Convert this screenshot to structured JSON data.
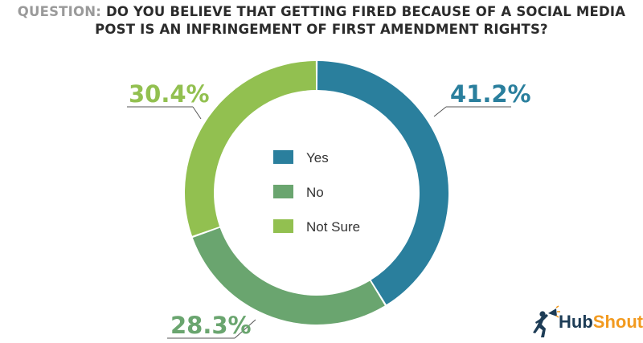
{
  "title": {
    "prefix": "QUESTION:",
    "line1": "DO YOU BELIEVE THAT GETTING FIRED BECAUSE OF A SOCIAL MEDIA",
    "line2": "POST IS AN INFRINGEMENT OF FIRST AMENDMENT RIGHTS?"
  },
  "logo": {
    "text_a": "Hub",
    "text_b": "Shout"
  },
  "chart_data": {
    "type": "pie",
    "style": "donut",
    "title": "QUESTION: DO YOU BELIEVE THAT GETTING FIRED BECAUSE OF A SOCIAL MEDIA POST IS AN INFRINGEMENT OF FIRST AMENDMENT RIGHTS?",
    "legend_position": "center",
    "slices": [
      {
        "label": "Yes",
        "value": 41.2,
        "display": "41.2%",
        "color": "#2a7f9d"
      },
      {
        "label": "No",
        "value": 28.3,
        "display": "28.3%",
        "color": "#6aa56f"
      },
      {
        "label": "Not Sure",
        "value": 30.4,
        "display": "30.4%",
        "color": "#92c050"
      }
    ]
  }
}
